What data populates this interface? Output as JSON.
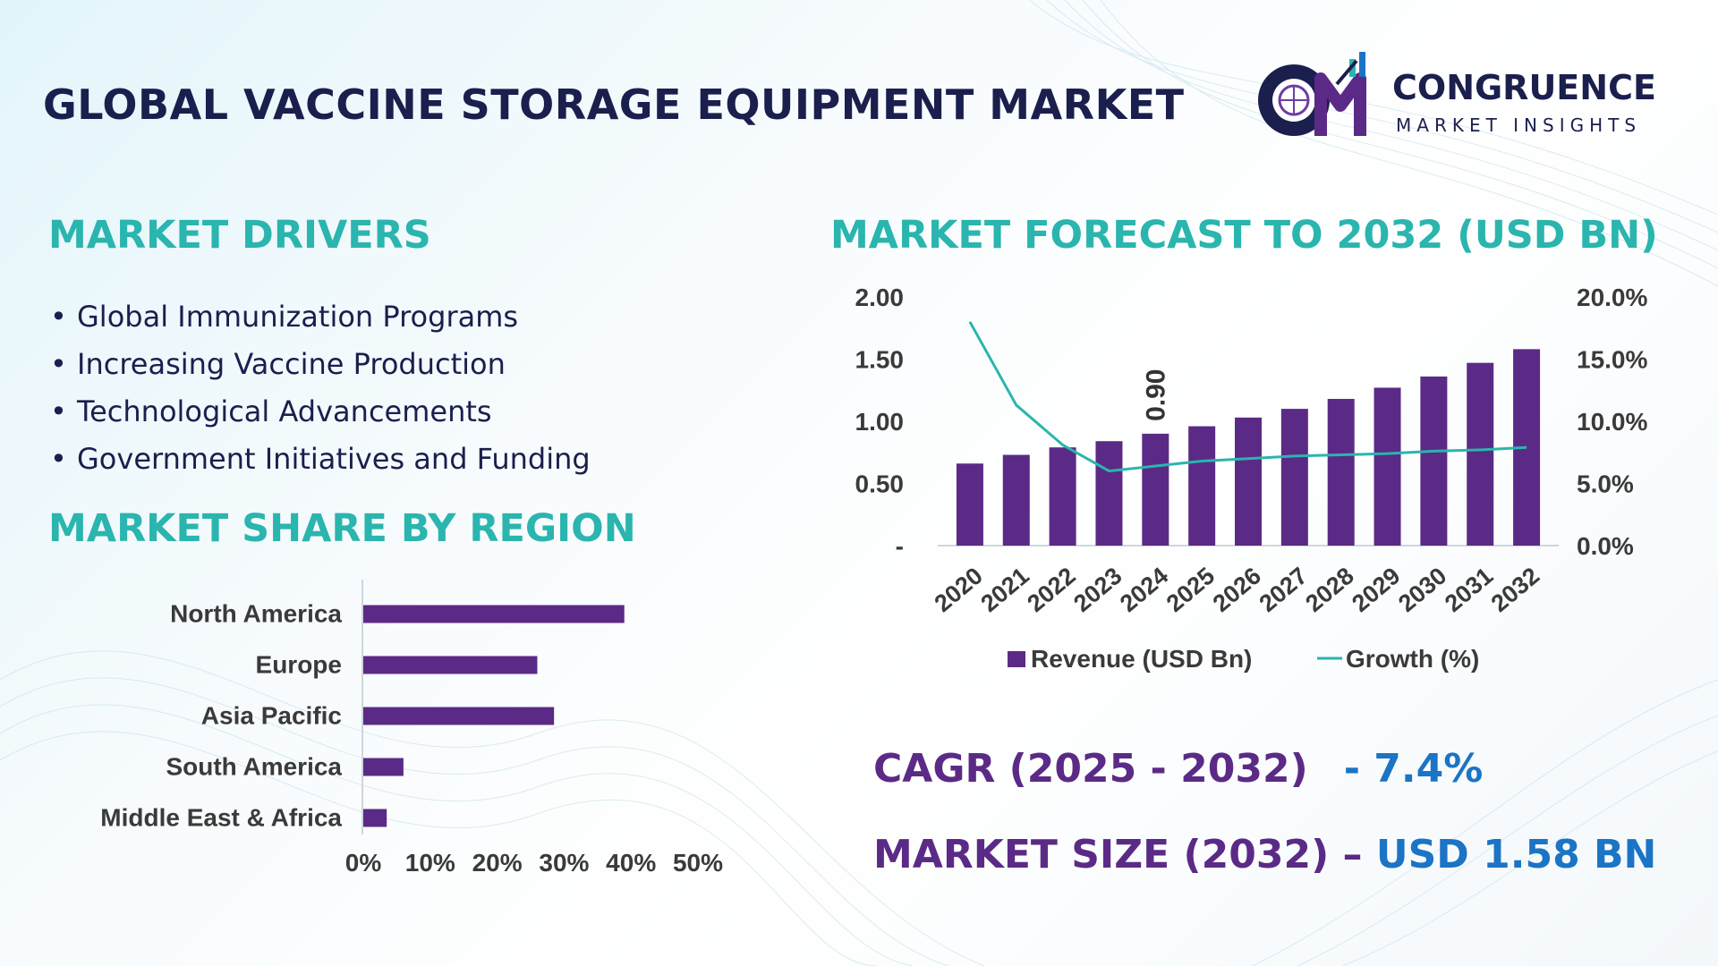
{
  "header": {
    "title": "GLOBAL VACCINE STORAGE EQUIPMENT MARKET",
    "logo": {
      "word": "CONGRUENCE",
      "sub": "MARKET INSIGHTS",
      "mark": "CM"
    }
  },
  "drivers": {
    "title": "MARKET DRIVERS",
    "items": [
      "Global Immunization Programs",
      "Increasing Vaccine Production",
      "Technological Advancements",
      "Government Initiatives and Funding"
    ]
  },
  "colors": {
    "purple": "#5b2a86",
    "teal": "#2ab5ae",
    "navy": "#1a1f4d",
    "blue": "#1b74c5"
  },
  "chart_data": [
    {
      "type": "bar",
      "orientation": "horizontal",
      "title": "MARKET SHARE BY REGION",
      "categories": [
        "North America",
        "Europe",
        "Asia Pacific",
        "South America",
        "Middle East & Africa"
      ],
      "values": [
        39,
        26,
        28.5,
        6,
        3.5
      ],
      "xlim": [
        0,
        50
      ],
      "xticks": [
        "0%",
        "10%",
        "20%",
        "30%",
        "40%",
        "50%"
      ]
    },
    {
      "type": "bar",
      "title": "MARKET FORECAST TO 2032 (USD BN)",
      "categories": [
        "2020",
        "2021",
        "2022",
        "2023",
        "2024",
        "2025",
        "2026",
        "2027",
        "2028",
        "2029",
        "2030",
        "2031",
        "2032"
      ],
      "series": [
        {
          "name": "Revenue (USD Bn)",
          "type": "bar",
          "axis": "left",
          "values": [
            0.66,
            0.73,
            0.79,
            0.84,
            0.9,
            0.96,
            1.03,
            1.1,
            1.18,
            1.27,
            1.36,
            1.47,
            1.58
          ]
        },
        {
          "name": "Growth (%)",
          "type": "line",
          "axis": "right",
          "values": [
            18.0,
            11.3,
            8.1,
            6.0,
            6.4,
            6.8,
            7.0,
            7.2,
            7.3,
            7.4,
            7.6,
            7.7,
            7.9
          ]
        }
      ],
      "ylim": [
        0,
        2.0
      ],
      "yticks": [
        "-",
        "0.50",
        "1.00",
        "1.50",
        "2.00"
      ],
      "y2lim": [
        0,
        20
      ],
      "y2ticks": [
        "0.0%",
        "5.0%",
        "10.0%",
        "15.0%",
        "20.0%"
      ],
      "annotation": {
        "category": "2024",
        "label": "0.90"
      },
      "legend": "bottom"
    }
  ],
  "metrics": {
    "cagr": {
      "label": "CAGR (2025 - 2032)",
      "value": "- 7.4%"
    },
    "size": {
      "label": "MARKET SIZE (2032) –",
      "value": "USD 1.58 BN"
    }
  }
}
